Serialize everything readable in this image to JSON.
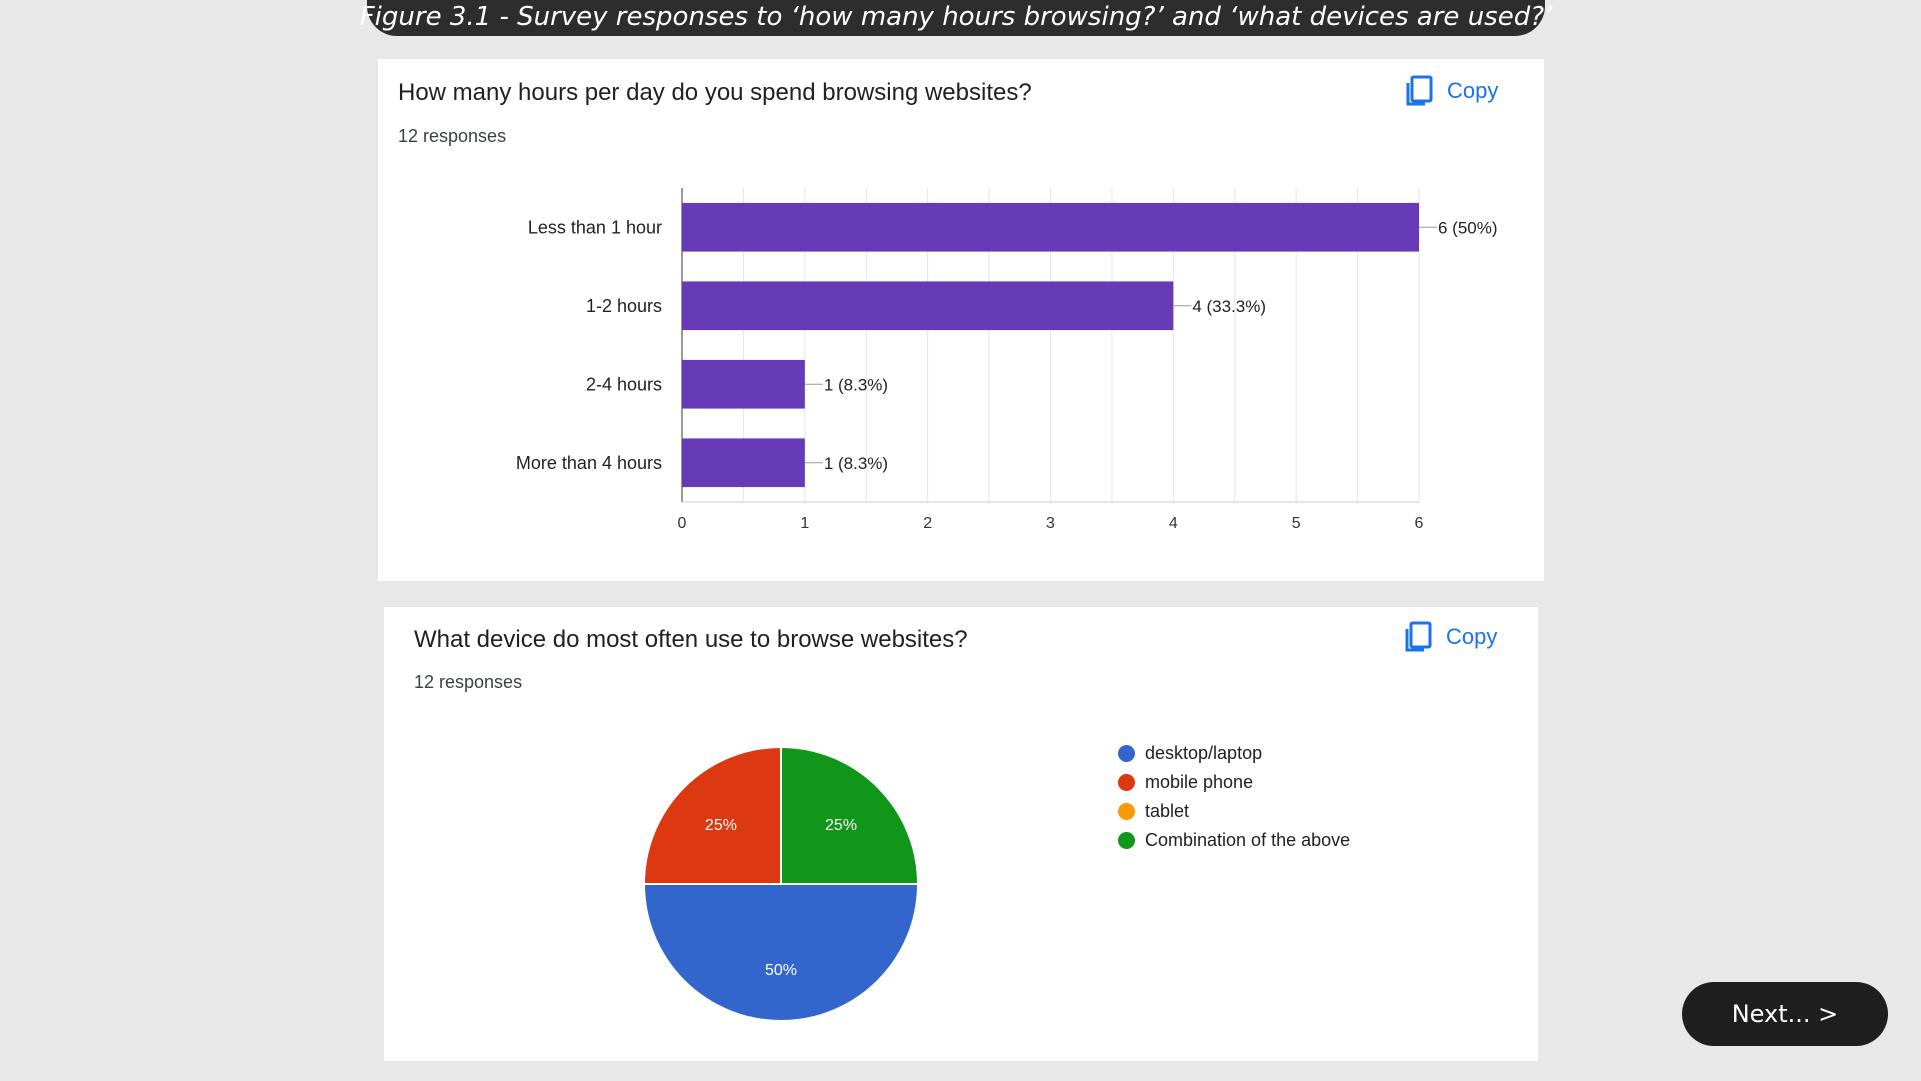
{
  "figure_caption": "Figure 3.1 - Survey responses to ‘how many hours browsing?’ and ‘what devices are used?’",
  "copy_label": "Copy",
  "next_label": "Next... >",
  "colors": {
    "bar": "#673ab7",
    "copy_blue": "#1a73e8",
    "caption_bg": "#2d2d2d"
  },
  "chart_data": [
    {
      "type": "bar",
      "orientation": "horizontal",
      "title": "How many hours per day do you spend browsing websites?",
      "subtitle": "12 responses",
      "categories": [
        "Less than 1 hour",
        "1-2 hours",
        "2-4 hours",
        "More than 4 hours"
      ],
      "values": [
        6,
        4,
        1,
        1
      ],
      "data_labels": [
        "6 (50%)",
        "4 (33.3%)",
        "1 (8.3%)",
        "1 (8.3%)"
      ],
      "xlim": [
        0,
        6
      ],
      "x_ticks": [
        0,
        1,
        2,
        3,
        4,
        5,
        6
      ],
      "grid": true,
      "color": "#673ab7"
    },
    {
      "type": "pie",
      "title": "What device do most often use to browse websites?",
      "subtitle": "12 responses",
      "series": [
        {
          "name": "desktop/laptop",
          "value": 50,
          "label": "50%",
          "color": "#3366cc"
        },
        {
          "name": "mobile phone",
          "value": 25,
          "label": "25%",
          "color": "#dc3912"
        },
        {
          "name": "tablet",
          "value": 0,
          "label": "",
          "color": "#ff9900"
        },
        {
          "name": "Combination of the above",
          "value": 25,
          "label": "25%",
          "color": "#109618"
        }
      ],
      "legend_position": "right"
    }
  ]
}
